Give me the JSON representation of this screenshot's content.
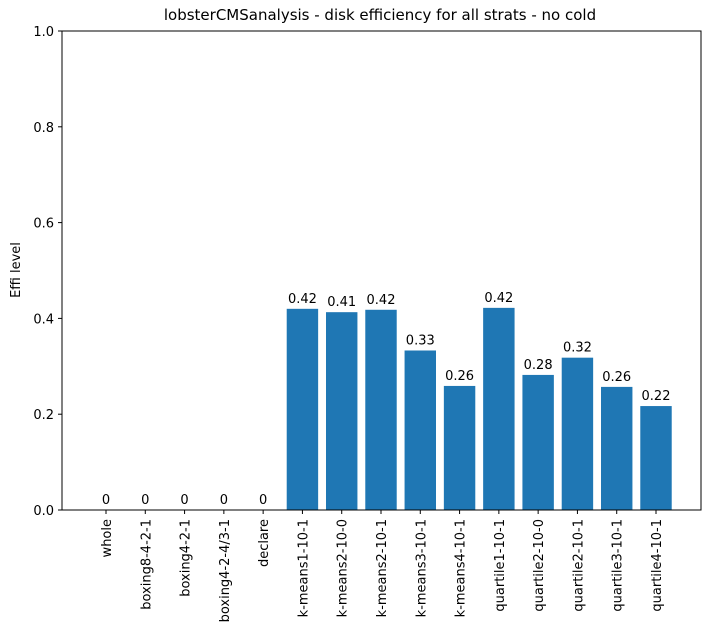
{
  "chart_data": {
    "type": "bar",
    "title": "lobsterCMSanalysis - disk efficiency for all strats - no cold",
    "xlabel": "",
    "ylabel": "Effi level",
    "ylim": [
      0,
      1.0
    ],
    "yticks": [
      0.0,
      0.2,
      0.4,
      0.6,
      0.8,
      1.0
    ],
    "ytick_labels": [
      "0.0",
      "0.2",
      "0.4",
      "0.6",
      "0.8",
      "1.0"
    ],
    "grid": false,
    "bar_color": "#1f77b4",
    "categories": [
      "whole",
      "boxing8-4-2-1",
      "boxing4-2-1",
      "boxing4-2-4/3-1",
      "declare",
      "k-means1-10-1",
      "k-means2-10-0",
      "k-means2-10-1",
      "k-means3-10-1",
      "k-means4-10-1",
      "quartile1-10-1",
      "quartile2-10-0",
      "quartile2-10-1",
      "quartile3-10-1",
      "quartile4-10-1"
    ],
    "values": [
      0,
      0,
      0,
      0,
      0,
      0.42,
      0.413,
      0.418,
      0.333,
      0.259,
      0.422,
      0.282,
      0.318,
      0.257,
      0.217
    ],
    "data_labels": [
      "0",
      "0",
      "0",
      "0",
      "0",
      "0.42",
      "0.41",
      "0.42",
      "0.33",
      "0.26",
      "0.42",
      "0.28",
      "0.32",
      "0.26",
      "0.22"
    ]
  }
}
